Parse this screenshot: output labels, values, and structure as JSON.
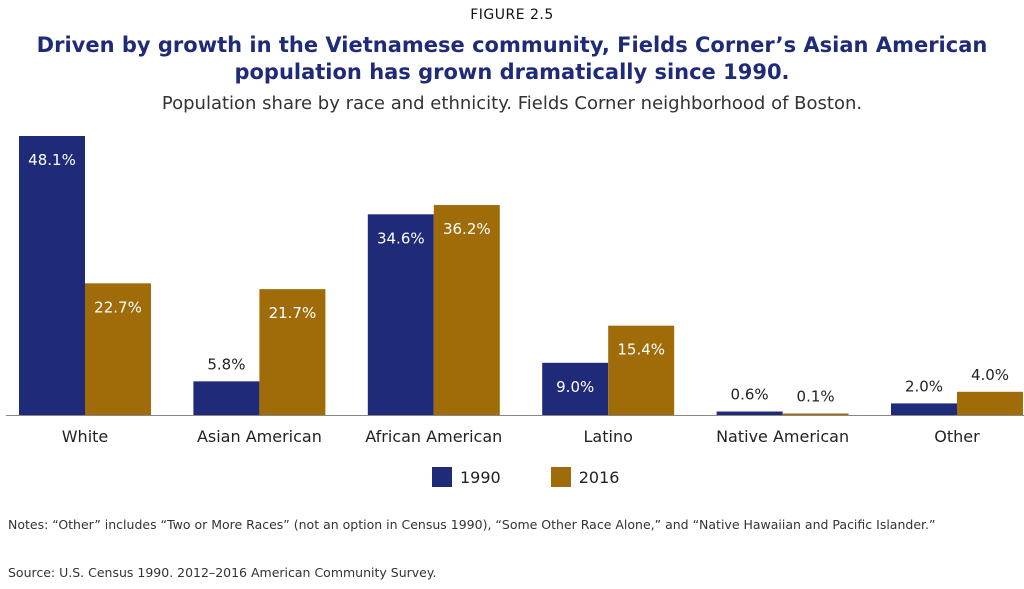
{
  "figure_label": "FIGURE 2.5",
  "title_line1": "Driven by growth in the Vietnamese community, Fields Corner’s Asian American",
  "title_line2": "population has grown dramatically since 1990.",
  "subtitle": "Population share by race and ethnicity. Fields Corner neighborhood of Boston.",
  "notes": "Notes: “Other” includes “Two or More Races” (not an option in Census 1990), “Some Other Race Alone,” and “Native Hawaiian and Pacific Islander.”",
  "source": "Source: U.S. Census 1990. 2012–2016 American Community Survey.",
  "chart_data": {
    "type": "bar",
    "categories": [
      "White",
      "Asian American",
      "African American",
      "Latino",
      "Native American",
      "Other"
    ],
    "series": [
      {
        "name": "1990",
        "color": "#1f2a78",
        "values": [
          48.1,
          5.8,
          34.6,
          9.0,
          0.6,
          2.0
        ],
        "labels": [
          "48.1%",
          "5.8%",
          "34.6%",
          "9.0%",
          "0.6%",
          "2.0%"
        ]
      },
      {
        "name": "2016",
        "color": "#a06c0a",
        "values": [
          22.7,
          21.7,
          36.2,
          15.4,
          0.1,
          4.0
        ],
        "labels": [
          "22.7%",
          "21.7%",
          "36.2%",
          "15.4%",
          "0.1%",
          "4.0%"
        ]
      }
    ],
    "ylim": [
      0,
      48.1
    ],
    "grid": false,
    "legend": "bottom-center"
  }
}
